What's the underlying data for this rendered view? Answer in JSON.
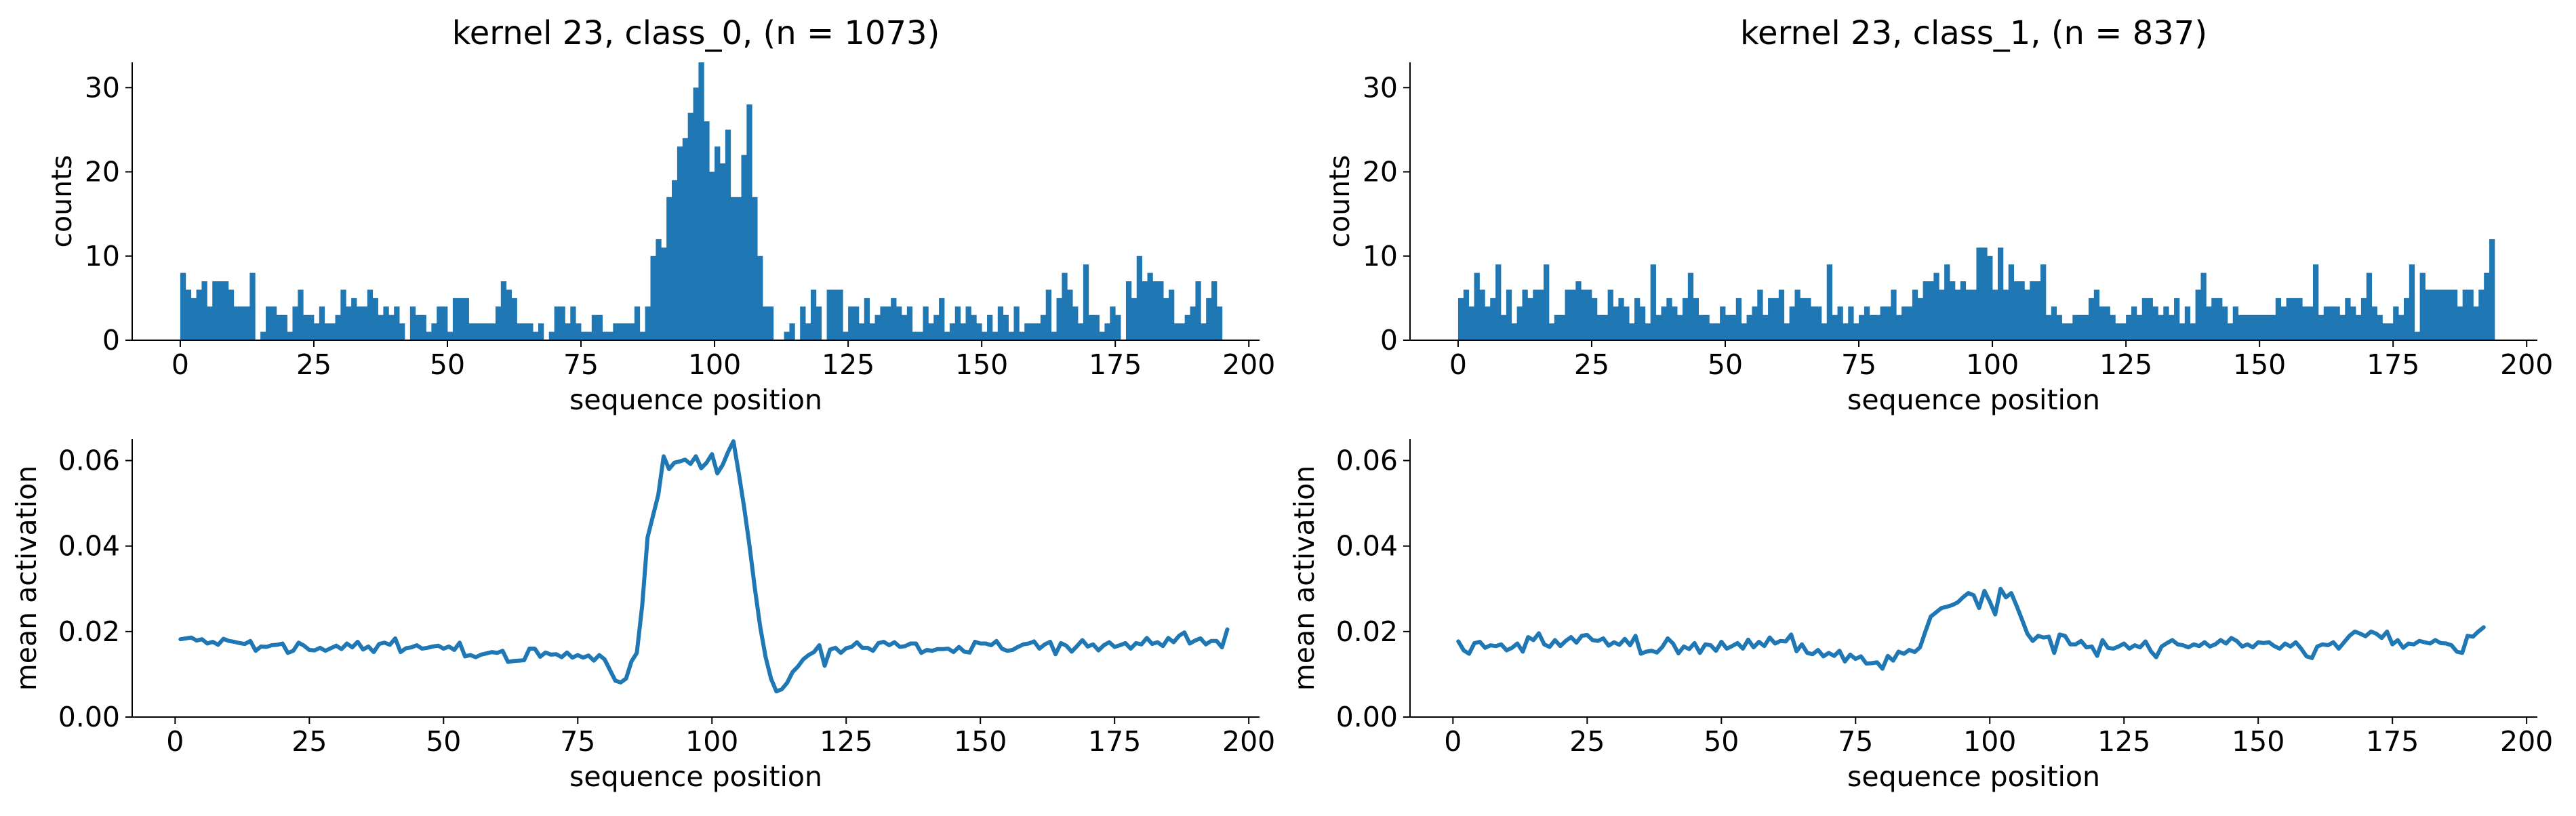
{
  "colors": {
    "series": "#1f77b4",
    "axes": "#000000",
    "background": "#ffffff"
  },
  "chart_data": [
    {
      "type": "bar",
      "title": "kernel 23, class_0, (n = 1073)",
      "xlabel": "sequence position",
      "ylabel": "counts",
      "xlim": [
        -9,
        202
      ],
      "ylim": [
        0,
        33
      ],
      "xticks": [
        0,
        25,
        50,
        75,
        100,
        125,
        150,
        175,
        200
      ],
      "yticks": [
        0,
        10,
        20,
        30
      ],
      "bin_width": 1,
      "x_start": 0,
      "values": [
        8,
        6,
        5,
        6,
        7,
        4,
        7,
        7,
        7,
        6,
        4,
        4,
        4,
        8,
        0,
        1,
        4,
        4,
        3,
        3,
        1,
        4,
        6,
        3,
        3,
        2,
        4,
        2,
        2,
        3,
        6,
        4,
        5,
        4,
        4,
        6,
        5,
        3,
        4,
        3,
        4,
        2,
        0,
        4,
        3,
        3,
        1,
        2,
        4,
        4,
        1,
        5,
        5,
        5,
        2,
        2,
        2,
        2,
        2,
        4,
        7,
        6,
        5,
        2,
        2,
        2,
        1,
        2,
        0,
        1,
        4,
        4,
        2,
        4,
        2,
        1,
        1,
        3,
        3,
        1,
        1,
        2,
        2,
        2,
        2,
        4,
        1,
        4,
        10,
        12,
        11,
        17,
        19,
        23,
        24,
        27,
        30,
        33,
        26,
        20,
        23,
        21,
        25,
        17,
        17,
        22,
        28,
        17,
        10,
        4,
        4,
        0,
        0,
        1,
        2,
        0,
        4,
        2,
        6,
        4,
        0,
        6,
        6,
        6,
        1,
        4,
        4,
        2,
        5,
        2,
        3,
        4,
        4,
        5,
        4,
        3,
        4,
        1,
        1,
        4,
        2,
        3,
        5,
        1,
        2,
        4,
        2,
        4,
        3,
        2,
        1,
        3,
        1,
        4,
        3,
        1,
        4,
        1,
        2,
        2,
        2,
        3,
        6,
        1,
        5,
        8,
        6,
        4,
        2,
        9,
        3,
        3,
        1,
        2,
        4,
        3,
        0,
        7,
        5,
        10,
        7,
        8,
        7,
        7,
        5,
        6,
        2,
        2,
        3,
        4,
        7,
        2,
        5,
        7,
        4
      ]
    },
    {
      "type": "bar",
      "title": "kernel 23, class_1, (n = 837)",
      "xlabel": "sequence position",
      "ylabel": "counts",
      "xlim": [
        -9,
        202
      ],
      "ylim": [
        0,
        33
      ],
      "xticks": [
        0,
        25,
        50,
        75,
        100,
        125,
        150,
        175,
        200
      ],
      "yticks": [
        0,
        10,
        20,
        30
      ],
      "bin_width": 1,
      "x_start": 0,
      "values": [
        5,
        6,
        4,
        8,
        6,
        4,
        5,
        9,
        3,
        6,
        2,
        4,
        6,
        5,
        6,
        6,
        9,
        2,
        3,
        3,
        6,
        6,
        7,
        6,
        6,
        5,
        3,
        3,
        6,
        4,
        5,
        4,
        2,
        5,
        4,
        2,
        9,
        3,
        4,
        5,
        4,
        3,
        5,
        8,
        5,
        3,
        3,
        2,
        2,
        4,
        3,
        3,
        5,
        2,
        3,
        4,
        6,
        3,
        5,
        5,
        6,
        2,
        4,
        6,
        5,
        5,
        4,
        4,
        2,
        9,
        3,
        4,
        2,
        4,
        2,
        3,
        4,
        3,
        3,
        4,
        4,
        6,
        3,
        4,
        4,
        6,
        5,
        7,
        7,
        8,
        6,
        9,
        7,
        6,
        7,
        6,
        6,
        11,
        11,
        10,
        6,
        11,
        6,
        9,
        7,
        7,
        6,
        7,
        7,
        9,
        3,
        4,
        3,
        2,
        2,
        3,
        3,
        3,
        5,
        6,
        4,
        4,
        3,
        2,
        2,
        3,
        4,
        3,
        5,
        5,
        4,
        3,
        4,
        3,
        5,
        2,
        4,
        2,
        6,
        8,
        4,
        5,
        5,
        4,
        2,
        4,
        3,
        3,
        3,
        3,
        3,
        3,
        3,
        5,
        4,
        5,
        5,
        5,
        4,
        4,
        9,
        3,
        4,
        4,
        4,
        3,
        5,
        4,
        3,
        5,
        8,
        4,
        3,
        2,
        2,
        4,
        3,
        5,
        9,
        1,
        8,
        6,
        6,
        6,
        6,
        6,
        6,
        4,
        6,
        6,
        4,
        6,
        8,
        12
      ]
    },
    {
      "type": "line",
      "title": "",
      "xlabel": "sequence position",
      "ylabel": "mean activation",
      "xlim": [
        -8,
        202
      ],
      "ylim": [
        0,
        0.065
      ],
      "xticks": [
        0,
        25,
        50,
        75,
        100,
        125,
        150,
        175,
        200
      ],
      "yticks": [
        "0.00",
        "0.02",
        "0.04",
        "0.06"
      ],
      "x_start": 1,
      "values": [
        0.0182,
        0.0184,
        0.0186,
        0.0179,
        0.0182,
        0.0172,
        0.0176,
        0.0169,
        0.0183,
        0.0178,
        0.0176,
        0.0173,
        0.0171,
        0.0178,
        0.0155,
        0.0165,
        0.0164,
        0.0168,
        0.0169,
        0.0172,
        0.015,
        0.0155,
        0.0174,
        0.0167,
        0.0157,
        0.0156,
        0.0162,
        0.0155,
        0.0161,
        0.0167,
        0.0159,
        0.0172,
        0.0163,
        0.0176,
        0.0158,
        0.0165,
        0.0152,
        0.0171,
        0.0174,
        0.0169,
        0.0184,
        0.0152,
        0.0161,
        0.0163,
        0.0168,
        0.016,
        0.0162,
        0.0165,
        0.0167,
        0.016,
        0.0165,
        0.0157,
        0.0174,
        0.0142,
        0.0145,
        0.014,
        0.0146,
        0.0149,
        0.0152,
        0.015,
        0.0155,
        0.0129,
        0.0131,
        0.0132,
        0.0133,
        0.016,
        0.016,
        0.0141,
        0.0151,
        0.0146,
        0.0147,
        0.014,
        0.0151,
        0.0139,
        0.0145,
        0.0139,
        0.0144,
        0.0132,
        0.0145,
        0.0135,
        0.011,
        0.0085,
        0.0081,
        0.009,
        0.013,
        0.015,
        0.026,
        0.042,
        0.047,
        0.052,
        0.061,
        0.058,
        0.0595,
        0.0598,
        0.0602,
        0.0592,
        0.061,
        0.0582,
        0.0595,
        0.0615,
        0.057,
        0.059,
        0.062,
        0.0645,
        0.057,
        0.049,
        0.04,
        0.03,
        0.021,
        0.014,
        0.009,
        0.006,
        0.0065,
        0.008,
        0.0105,
        0.0118,
        0.0135,
        0.0145,
        0.0152,
        0.0168,
        0.012,
        0.0158,
        0.0162,
        0.015,
        0.0161,
        0.0164,
        0.0175,
        0.0162,
        0.0162,
        0.0155,
        0.0173,
        0.0176,
        0.0168,
        0.0175,
        0.0164,
        0.0166,
        0.0172,
        0.0172,
        0.015,
        0.0157,
        0.0155,
        0.0159,
        0.0159,
        0.016,
        0.0152,
        0.0164,
        0.0153,
        0.0151,
        0.0176,
        0.0172,
        0.0172,
        0.0168,
        0.0178,
        0.016,
        0.0155,
        0.0157,
        0.0164,
        0.017,
        0.0172,
        0.0177,
        0.016,
        0.017,
        0.0176,
        0.0147,
        0.0173,
        0.0167,
        0.0153,
        0.0166,
        0.018,
        0.0165,
        0.017,
        0.0156,
        0.0168,
        0.0175,
        0.0164,
        0.0168,
        0.0173,
        0.016,
        0.0173,
        0.017,
        0.0185,
        0.0171,
        0.0175,
        0.0166,
        0.0185,
        0.0175,
        0.019,
        0.0198,
        0.0172,
        0.0179,
        0.0184,
        0.017,
        0.0178,
        0.0178,
        0.0163,
        0.0205
      ]
    },
    {
      "type": "line",
      "title": "",
      "xlabel": "sequence position",
      "ylabel": "mean activation",
      "xlim": [
        -8,
        202
      ],
      "ylim": [
        0,
        0.065
      ],
      "xticks": [
        0,
        25,
        50,
        75,
        100,
        125,
        150,
        175,
        200
      ],
      "yticks": [
        "0.00",
        "0.02",
        "0.04",
        "0.06"
      ],
      "x_start": 1,
      "values": [
        0.0177,
        0.0156,
        0.0148,
        0.0173,
        0.0176,
        0.0162,
        0.0168,
        0.0166,
        0.017,
        0.0156,
        0.0162,
        0.0172,
        0.0153,
        0.0187,
        0.018,
        0.0196,
        0.017,
        0.0164,
        0.018,
        0.0166,
        0.0178,
        0.0187,
        0.0174,
        0.019,
        0.0192,
        0.018,
        0.0178,
        0.0184,
        0.0167,
        0.0175,
        0.0169,
        0.0183,
        0.0168,
        0.019,
        0.0148,
        0.0153,
        0.0155,
        0.0151,
        0.0164,
        0.0184,
        0.0172,
        0.0149,
        0.0165,
        0.0159,
        0.0173,
        0.015,
        0.017,
        0.0168,
        0.0155,
        0.0176,
        0.016,
        0.0166,
        0.0173,
        0.016,
        0.0181,
        0.0163,
        0.0176,
        0.0166,
        0.0186,
        0.0172,
        0.0178,
        0.0177,
        0.0193,
        0.0154,
        0.017,
        0.015,
        0.0147,
        0.0157,
        0.0142,
        0.015,
        0.0143,
        0.0155,
        0.013,
        0.0146,
        0.0136,
        0.0142,
        0.0125,
        0.0126,
        0.0128,
        0.0113,
        0.0143,
        0.0132,
        0.0153,
        0.0148,
        0.0157,
        0.0152,
        0.0163,
        0.02,
        0.0235,
        0.0245,
        0.0255,
        0.0258,
        0.0262,
        0.0268,
        0.028,
        0.029,
        0.0285,
        0.0255,
        0.0295,
        0.027,
        0.024,
        0.03,
        0.028,
        0.029,
        0.026,
        0.0228,
        0.0195,
        0.0178,
        0.019,
        0.0186,
        0.0188,
        0.015,
        0.0193,
        0.019,
        0.017,
        0.017,
        0.0178,
        0.0163,
        0.0165,
        0.0143,
        0.018,
        0.0162,
        0.016,
        0.0165,
        0.0172,
        0.016,
        0.0168,
        0.0163,
        0.0177,
        0.0154,
        0.014,
        0.0165,
        0.0173,
        0.018,
        0.017,
        0.0168,
        0.0163,
        0.017,
        0.0166,
        0.0175,
        0.0165,
        0.017,
        0.018,
        0.0172,
        0.0185,
        0.0178,
        0.0165,
        0.017,
        0.0163,
        0.0175,
        0.0173,
        0.0175,
        0.0166,
        0.016,
        0.0172,
        0.0165,
        0.0175,
        0.016,
        0.0142,
        0.0138,
        0.0165,
        0.017,
        0.0168,
        0.0175,
        0.016,
        0.0175,
        0.019,
        0.02,
        0.0195,
        0.0189,
        0.02,
        0.0195,
        0.0185,
        0.02,
        0.017,
        0.018,
        0.0162,
        0.0172,
        0.017,
        0.0178,
        0.0175,
        0.0172,
        0.018,
        0.0173,
        0.0172,
        0.0168,
        0.0153,
        0.015,
        0.019,
        0.0188,
        0.02,
        0.021
      ]
    }
  ]
}
